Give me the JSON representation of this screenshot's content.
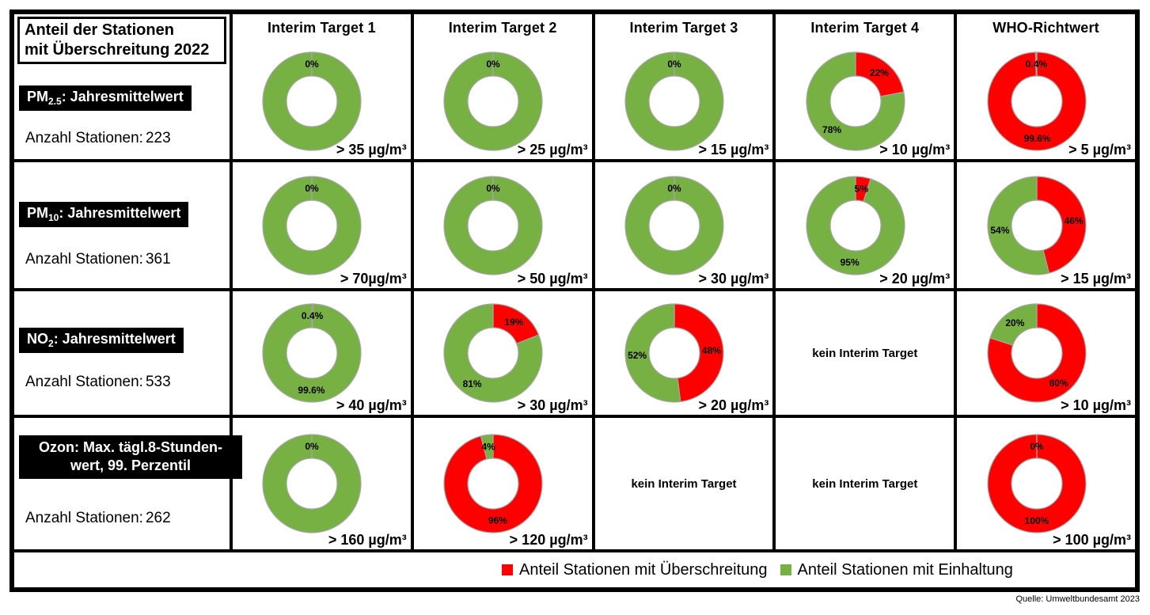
{
  "title_box": {
    "line1": "Anteil der Stationen",
    "line2": "mit Überschreitung 2022"
  },
  "anzahl_prefix": "Anzahl Stationen:",
  "no_target_label": "kein Interim Target",
  "source": "Quelle: Umweltbundesamt 2023",
  "colors": {
    "exceed": "#FF0000",
    "comply": "#77B043",
    "donut_border": "#A6A6A6",
    "label_box_bg": "#000000",
    "label_box_text": "#FFFFFF"
  },
  "legend": [
    {
      "label": "Anteil Stationen mit Überschreitung",
      "color_key": "exceed"
    },
    {
      "label": "Anteil Stationen mit Einhaltung",
      "color_key": "comply"
    }
  ],
  "chart_data": {
    "type": "pie",
    "subtype": "donut-grid",
    "units": "percent of stations",
    "legend_position": "bottom",
    "columns": [
      "Interim Target  1",
      "Interim Target 2",
      "Interim Target 3",
      "Interim Target  4",
      "WHO-Richtwert"
    ],
    "rows": [
      {
        "pollutant": "PM2.5: Jahresmittelwert",
        "label_parts": [
          {
            "text": "PM"
          },
          {
            "sub": "2.5"
          },
          {
            "text": ": Jahresmittelwert"
          }
        ],
        "stations": "223",
        "cells": [
          {
            "threshold": "> 35 µg/m³",
            "exceed": 0,
            "comply": 100,
            "exceed_label": "0%",
            "comply_label": null
          },
          {
            "threshold": "> 25 µg/m³",
            "exceed": 0,
            "comply": 100,
            "exceed_label": "0%",
            "comply_label": null
          },
          {
            "threshold": "> 15 µg/m³",
            "exceed": 0,
            "comply": 100,
            "exceed_label": "0%",
            "comply_label": null
          },
          {
            "threshold": "> 10 µg/m³",
            "exceed": 22,
            "comply": 78,
            "exceed_label": "22%",
            "comply_label": "78%"
          },
          {
            "threshold": "> 5 µg/m³",
            "exceed": 99.6,
            "comply": 0.4,
            "exceed_label": "99.6%",
            "comply_label": "0.4%"
          }
        ]
      },
      {
        "pollutant": "PM10: Jahresmittelwert",
        "label_parts": [
          {
            "text": "PM"
          },
          {
            "sub": "10"
          },
          {
            "text": ": Jahresmittelwert"
          }
        ],
        "stations": "361",
        "cells": [
          {
            "threshold": "> 70µg/m³",
            "exceed": 0,
            "comply": 100,
            "exceed_label": "0%",
            "comply_label": null
          },
          {
            "threshold": "> 50 µg/m³",
            "exceed": 0,
            "comply": 100,
            "exceed_label": "0%",
            "comply_label": null
          },
          {
            "threshold": "> 30 µg/m³",
            "exceed": 0,
            "comply": 100,
            "exceed_label": "0%",
            "comply_label": null
          },
          {
            "threshold": "> 20 µg/m³",
            "exceed": 5,
            "comply": 95,
            "exceed_label": "5%",
            "comply_label": "95%"
          },
          {
            "threshold": "> 15 µg/m³",
            "exceed": 46,
            "comply": 54,
            "exceed_label": "46%",
            "comply_label": "54%"
          }
        ]
      },
      {
        "pollutant": "NO2: Jahresmittelwert",
        "label_parts": [
          {
            "text": "NO"
          },
          {
            "sub": "2"
          },
          {
            "text": ": Jahresmittelwert"
          }
        ],
        "stations": "533",
        "cells": [
          {
            "threshold": "> 40 µg/m³",
            "exceed": 0.4,
            "comply": 99.6,
            "exceed_label": "0.4%",
            "comply_label": "99.6%"
          },
          {
            "threshold": "> 30 µg/m³",
            "exceed": 19,
            "comply": 81,
            "exceed_label": "19%",
            "comply_label": "81%"
          },
          {
            "threshold": "> 20 µg/m³",
            "exceed": 48,
            "comply": 52,
            "exceed_label": "48%",
            "comply_label": "52%"
          },
          {
            "no_target": true
          },
          {
            "threshold": "> 10 µg/m³",
            "exceed": 80,
            "comply": 20,
            "exceed_label": "80%",
            "comply_label": "20%"
          }
        ]
      },
      {
        "pollutant": "Ozon: Max. tägl. 8-Stundenwert, 99. Perzentil",
        "label_parts": [
          {
            "text": "Ozon: Max. tägl.8-Stunden-"
          },
          {
            "br": true
          },
          {
            "text": "wert, 99. Perzentil"
          }
        ],
        "stations": "262",
        "cells": [
          {
            "threshold": "> 160 µg/m³",
            "exceed": 0,
            "comply": 100,
            "exceed_label": "0%",
            "comply_label": null
          },
          {
            "threshold": "> 120 µg/m³",
            "exceed": 96,
            "comply": 4,
            "exceed_label": "96%",
            "comply_label": "4%"
          },
          {
            "no_target": true
          },
          {
            "no_target": true
          },
          {
            "threshold": "> 100 µg/m³",
            "exceed": 100,
            "comply": 0,
            "exceed_label": "100%",
            "comply_label": "0%"
          }
        ]
      }
    ]
  }
}
